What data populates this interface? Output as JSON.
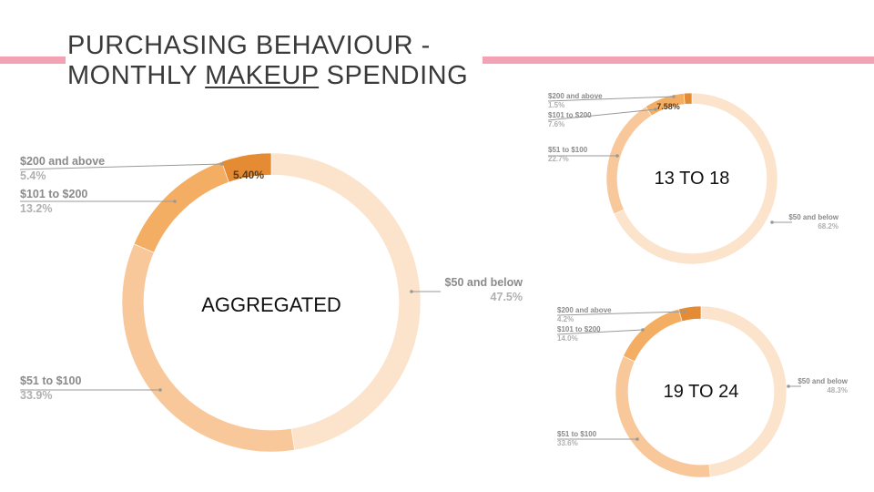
{
  "slide": {
    "title_line1": "PURCHASING BEHAVIOUR -",
    "title_line2_pre": "MONTHLY ",
    "title_line2_underlined": "MAKEUP",
    "title_line2_post": " SPENDING"
  },
  "colors": {
    "pink_bar": "#f3a2b4",
    "tier_50_below": "#fbe3cc",
    "tier_51_100": "#f8c89b",
    "tier_101_200": "#f4ae64",
    "tier_200_above": "#e58b34"
  },
  "chart_data": [
    {
      "type": "pie",
      "variant": "donut",
      "center_label": "AGGREGATED",
      "slices": [
        {
          "category": "$50 and below",
          "value": 47.5,
          "label": "47.5%"
        },
        {
          "category": "$51 to $100",
          "value": 33.9,
          "label": "33.9%"
        },
        {
          "category": "$101 to $200",
          "value": 13.2,
          "label": "13.2%"
        },
        {
          "category": "$200 and above",
          "value": 5.4,
          "label": "5.4%"
        }
      ],
      "slice_annotation": "5.40%"
    },
    {
      "type": "pie",
      "variant": "donut",
      "center_label": "13 TO 18",
      "slices": [
        {
          "category": "$50 and below",
          "value": 68.2,
          "label": "68.2%"
        },
        {
          "category": "$51 to $100",
          "value": 22.7,
          "label": "22.7%"
        },
        {
          "category": "$101 to $200",
          "value": 7.6,
          "label": "7.6%"
        },
        {
          "category": "$200 and above",
          "value": 1.5,
          "label": "1.5%"
        }
      ],
      "slice_annotation": "7.58%"
    },
    {
      "type": "pie",
      "variant": "donut",
      "center_label": "19 TO 24",
      "slices": [
        {
          "category": "$50 and below",
          "value": 48.3,
          "label": "48.3%"
        },
        {
          "category": "$51 to $100",
          "value": 33.6,
          "label": "33.6%"
        },
        {
          "category": "$101 to $200",
          "value": 14.0,
          "label": "14.0%"
        },
        {
          "category": "$200 and above",
          "value": 4.2,
          "label": "4.2%"
        }
      ]
    }
  ]
}
